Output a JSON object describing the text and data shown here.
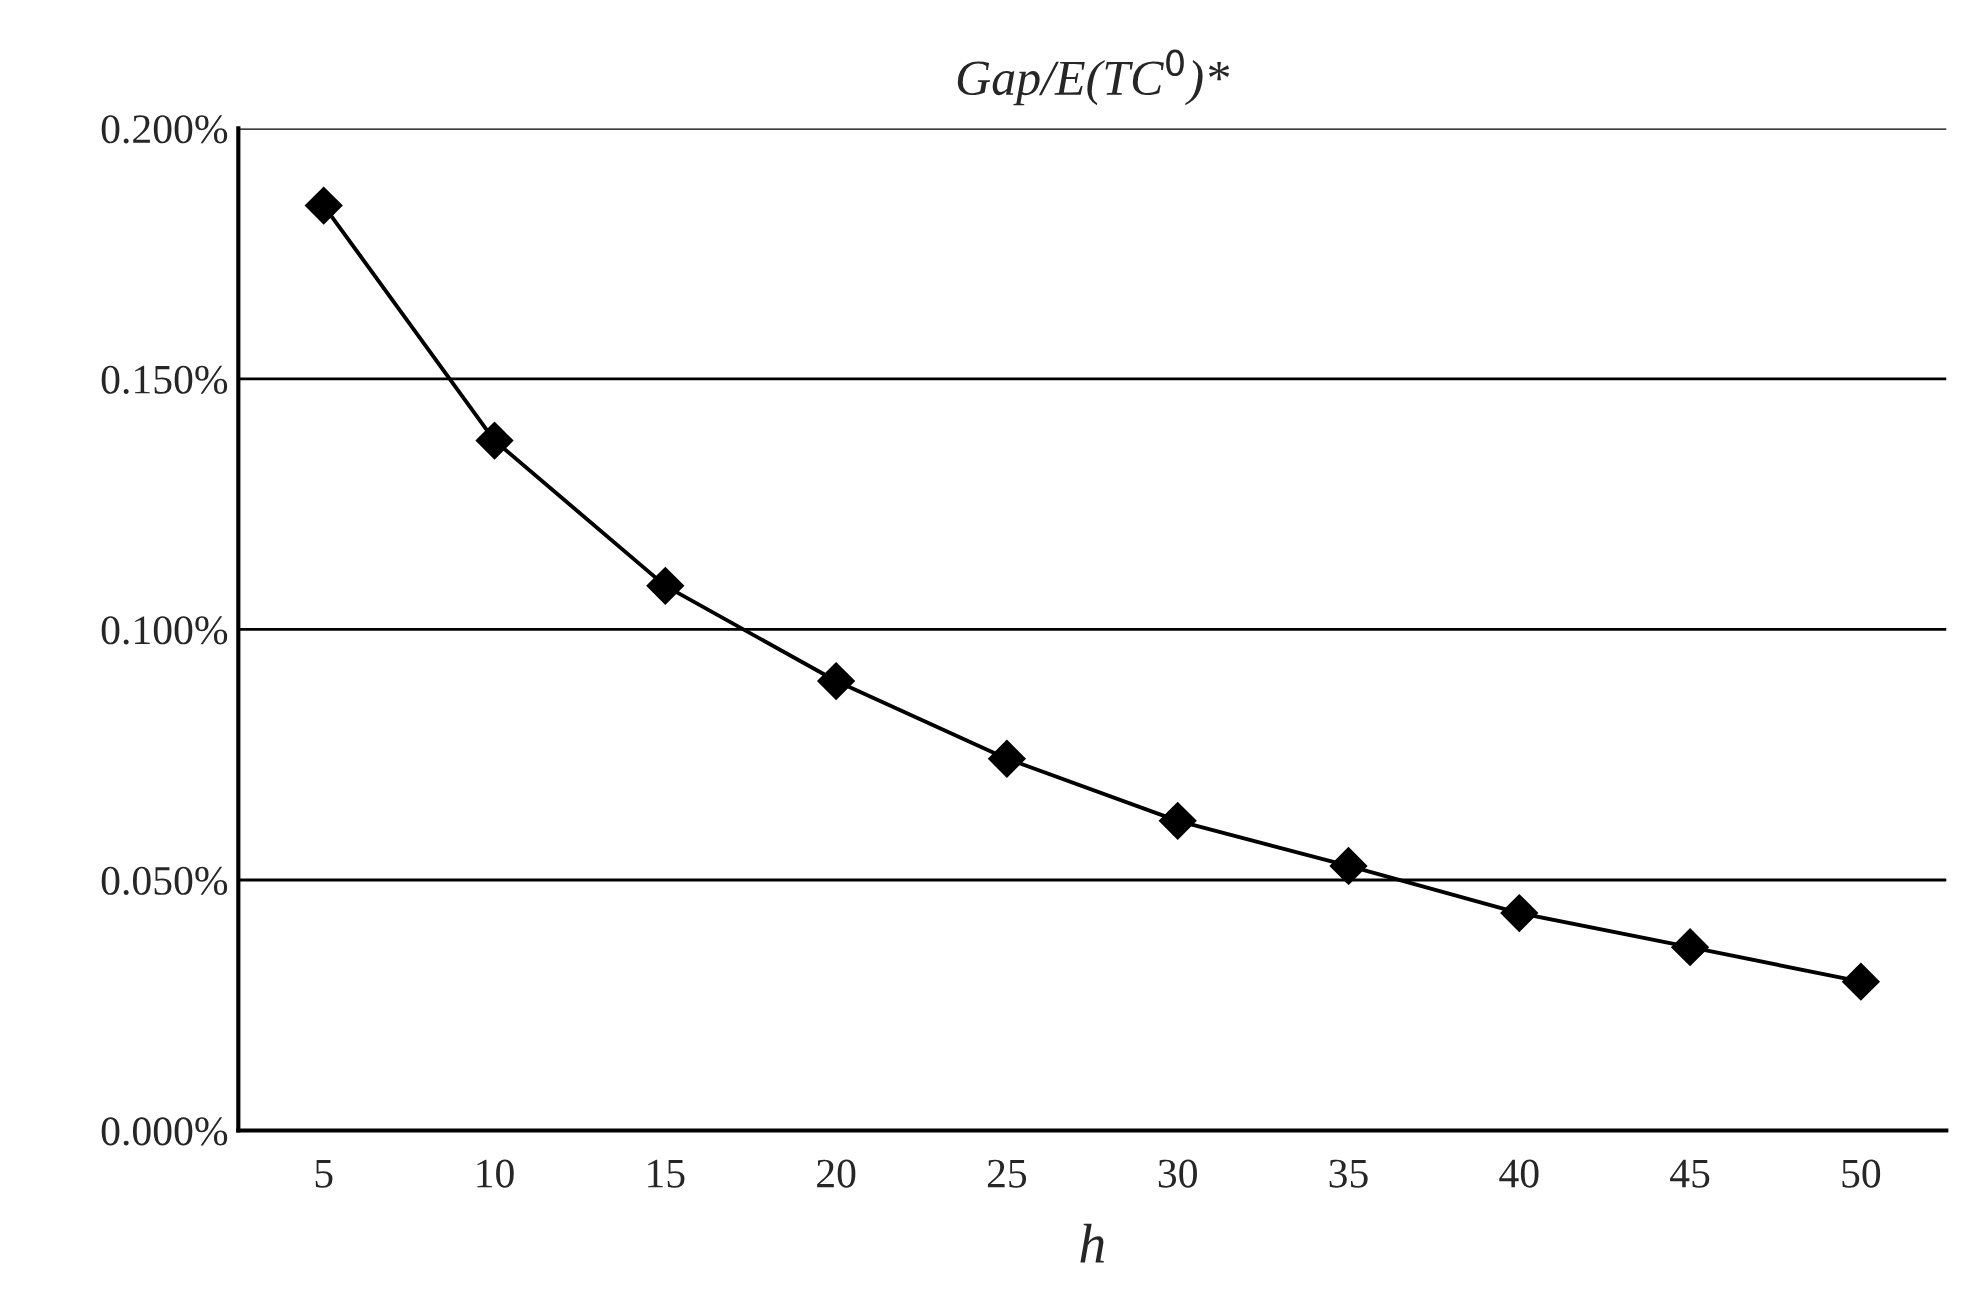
{
  "chart_data": {
    "type": "line",
    "title": "Gap/E(TC$^{0}$)*",
    "xlabel": "h",
    "categories": [
      "5",
      "10",
      "15",
      "20",
      "25",
      "30",
      "35",
      "40",
      "45",
      "50"
    ],
    "series": [
      {
        "color": "#000000",
        "values": [
          0.1846,
          0.1377,
          0.1087,
          0.0897,
          0.0742,
          0.0618,
          0.0528,
          0.0434,
          0.0366,
          0.0297
        ]
      }
    ],
    "ylim": [
      0,
      0.2
    ],
    "yticks": [
      {
        "value": 0,
        "label": "0.000%"
      },
      {
        "value": 0.05,
        "label": "0.050%"
      },
      {
        "value": 0.1,
        "label": "0.100%"
      },
      {
        "value": 0.15,
        "label": "0.150%"
      },
      {
        "value": 0.2,
        "label": "0.200%"
      }
    ],
    "grid": "y",
    "marker": "diamond",
    "line_style": "solid"
  }
}
